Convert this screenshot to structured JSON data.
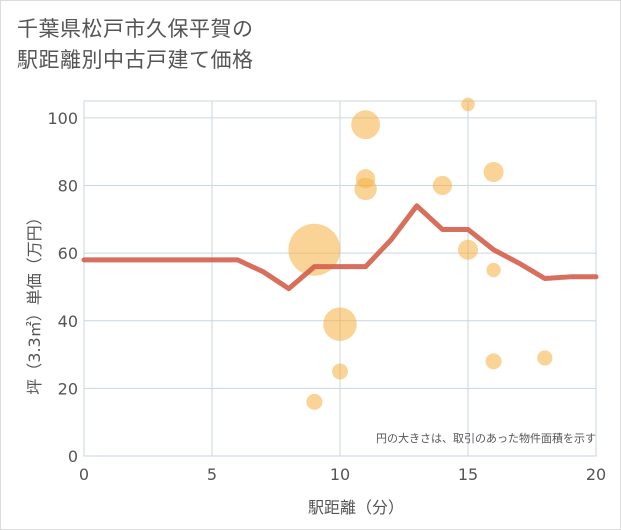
{
  "title": {
    "line1": "千葉県松戸市久保平賀の",
    "line2": "駅距離別中古戸建て価格"
  },
  "chart_data": {
    "type": "scatter",
    "xlabel": "駅距離（分）",
    "ylabel": "坪（3.3㎡）単価（万円）",
    "xlim": [
      0,
      20
    ],
    "ylim": [
      0,
      105
    ],
    "x_ticks": [
      0,
      5,
      10,
      15,
      20
    ],
    "y_ticks": [
      0,
      20,
      40,
      60,
      80,
      100
    ],
    "grid": true,
    "note": "円の大きさは、取引のあった物件面積を示す",
    "colors": {
      "bubble": "#f5b041",
      "line": "#d35f4a",
      "grid": "#c8d6e0"
    },
    "bubbles": [
      {
        "x": 9,
        "y": 61,
        "size": 5.5
      },
      {
        "x": 9,
        "y": 16,
        "size": 1
      },
      {
        "x": 10,
        "y": 39,
        "size": 3.2
      },
      {
        "x": 10,
        "y": 25,
        "size": 1
      },
      {
        "x": 11,
        "y": 98,
        "size": 2.6
      },
      {
        "x": 11,
        "y": 82,
        "size": 1.4
      },
      {
        "x": 11,
        "y": 79,
        "size": 1.8
      },
      {
        "x": 14,
        "y": 80,
        "size": 1.4
      },
      {
        "x": 15,
        "y": 104,
        "size": 0.7
      },
      {
        "x": 15,
        "y": 61,
        "size": 1.5
      },
      {
        "x": 16,
        "y": 84,
        "size": 1.5
      },
      {
        "x": 16,
        "y": 55,
        "size": 0.8
      },
      {
        "x": 16,
        "y": 28,
        "size": 1
      },
      {
        "x": 18,
        "y": 29,
        "size": 0.9
      }
    ],
    "trend": {
      "x": [
        0,
        1,
        2,
        3,
        4,
        5,
        6,
        7,
        8,
        9,
        10,
        11,
        12,
        13,
        14,
        15,
        16,
        17,
        18,
        19,
        20
      ],
      "y": [
        58,
        58,
        58,
        58,
        58,
        58,
        58,
        54.5,
        49.5,
        56,
        56,
        56,
        64,
        74,
        67,
        67,
        61,
        57,
        52.5,
        53,
        53
      ]
    }
  }
}
